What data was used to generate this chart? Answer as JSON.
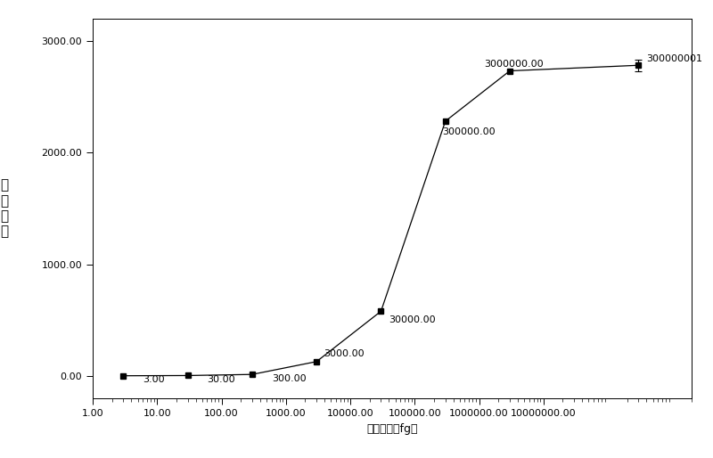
{
  "x_data": [
    3,
    30,
    300,
    3000,
    30000,
    300000,
    3000000,
    300000001
  ],
  "y_data": [
    3,
    5,
    15,
    130,
    580,
    2280,
    2730,
    2780
  ],
  "y_errors": [
    0,
    0,
    0,
    0,
    0,
    0,
    0,
    50
  ],
  "point_labels": [
    "3.00",
    "30.00",
    "300.00",
    "3000.00",
    "30000.00",
    "300000.00",
    "3000000.00",
    "300000001"
  ],
  "xlabel": "样品浓度（fg）",
  "ylabel_chars": [
    "荧",
    "光",
    "强",
    "度"
  ],
  "xlim": [
    1,
    2000000000
  ],
  "ylim": [
    -200,
    3200
  ],
  "yticks": [
    0.0,
    1000.0,
    2000.0,
    3000.0
  ],
  "ytick_labels": [
    "0.00",
    "1000.00",
    "2000.00",
    "3000.00"
  ],
  "xtick_positions": [
    1,
    10,
    100,
    1000,
    10000,
    100000,
    1000000,
    10000000
  ],
  "xtick_labels": [
    "1.00",
    "10.00",
    "100.00",
    "1000.00",
    "10000.00",
    "100000.00",
    "1000000.00",
    "10000000.00"
  ],
  "bg_color": "#ffffff",
  "line_color": "#000000",
  "marker_color": "#000000",
  "marker_size": 5,
  "font_size": 8,
  "label_fontsize": 8,
  "sigmoid_L": 2790,
  "sigmoid_x0": 50000,
  "sigmoid_k": 1.8,
  "sigmoid_b": 0
}
